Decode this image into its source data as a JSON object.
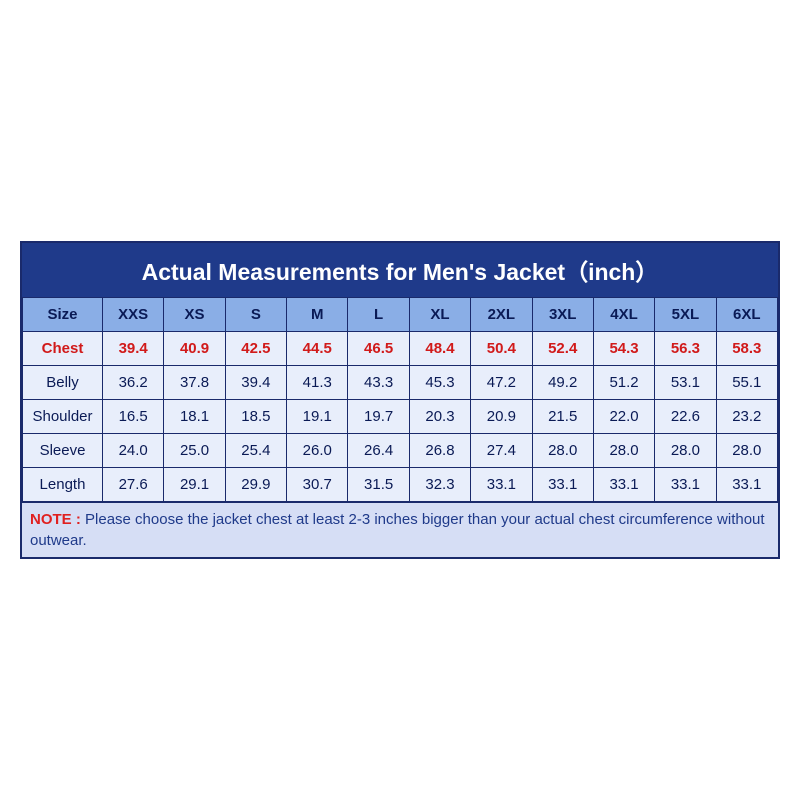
{
  "title": "Actual Measurements for Men's Jacket（inch）",
  "title_bg": "#1f3a8a",
  "title_color": "#ffffff",
  "title_fontsize": 23,
  "header_bg": "#8aaee6",
  "header_color": "#0a1a55",
  "body_bg": "#e8eefb",
  "body_color": "#0a1a55",
  "chest_color": "#d11a1a",
  "note_bg": "#d6def5",
  "note_label_color": "#e02020",
  "note_text_color": "#1f3a8a",
  "border_color": "#1a2a6b",
  "sizes_label": "Size",
  "sizes": [
    "XXS",
    "XS",
    "S",
    "M",
    "L",
    "XL",
    "2XL",
    "3XL",
    "4XL",
    "5XL",
    "6XL"
  ],
  "rows": [
    {
      "label": "Chest",
      "highlight": true,
      "values": [
        "39.4",
        "40.9",
        "42.5",
        "44.5",
        "46.5",
        "48.4",
        "50.4",
        "52.4",
        "54.3",
        "56.3",
        "58.3"
      ]
    },
    {
      "label": "Belly",
      "highlight": false,
      "values": [
        "36.2",
        "37.8",
        "39.4",
        "41.3",
        "43.3",
        "45.3",
        "47.2",
        "49.2",
        "51.2",
        "53.1",
        "55.1"
      ]
    },
    {
      "label": "Shoulder",
      "highlight": false,
      "values": [
        "16.5",
        "18.1",
        "18.5",
        "19.1",
        "19.7",
        "20.3",
        "20.9",
        "21.5",
        "22.0",
        "22.6",
        "23.2"
      ]
    },
    {
      "label": "Sleeve",
      "highlight": false,
      "values": [
        "24.0",
        "25.0",
        "25.4",
        "26.0",
        "26.4",
        "26.8",
        "27.4",
        "28.0",
        "28.0",
        "28.0",
        "28.0"
      ]
    },
    {
      "label": "Length",
      "highlight": false,
      "values": [
        "27.6",
        "29.1",
        "29.9",
        "30.7",
        "31.5",
        "32.3",
        "33.1",
        "33.1",
        "33.1",
        "33.1",
        "33.1"
      ]
    }
  ],
  "note_label": "NOTE :",
  "note_text": " Please choose the jacket chest at least 2-3 inches bigger than your actual chest circumference without outwear."
}
